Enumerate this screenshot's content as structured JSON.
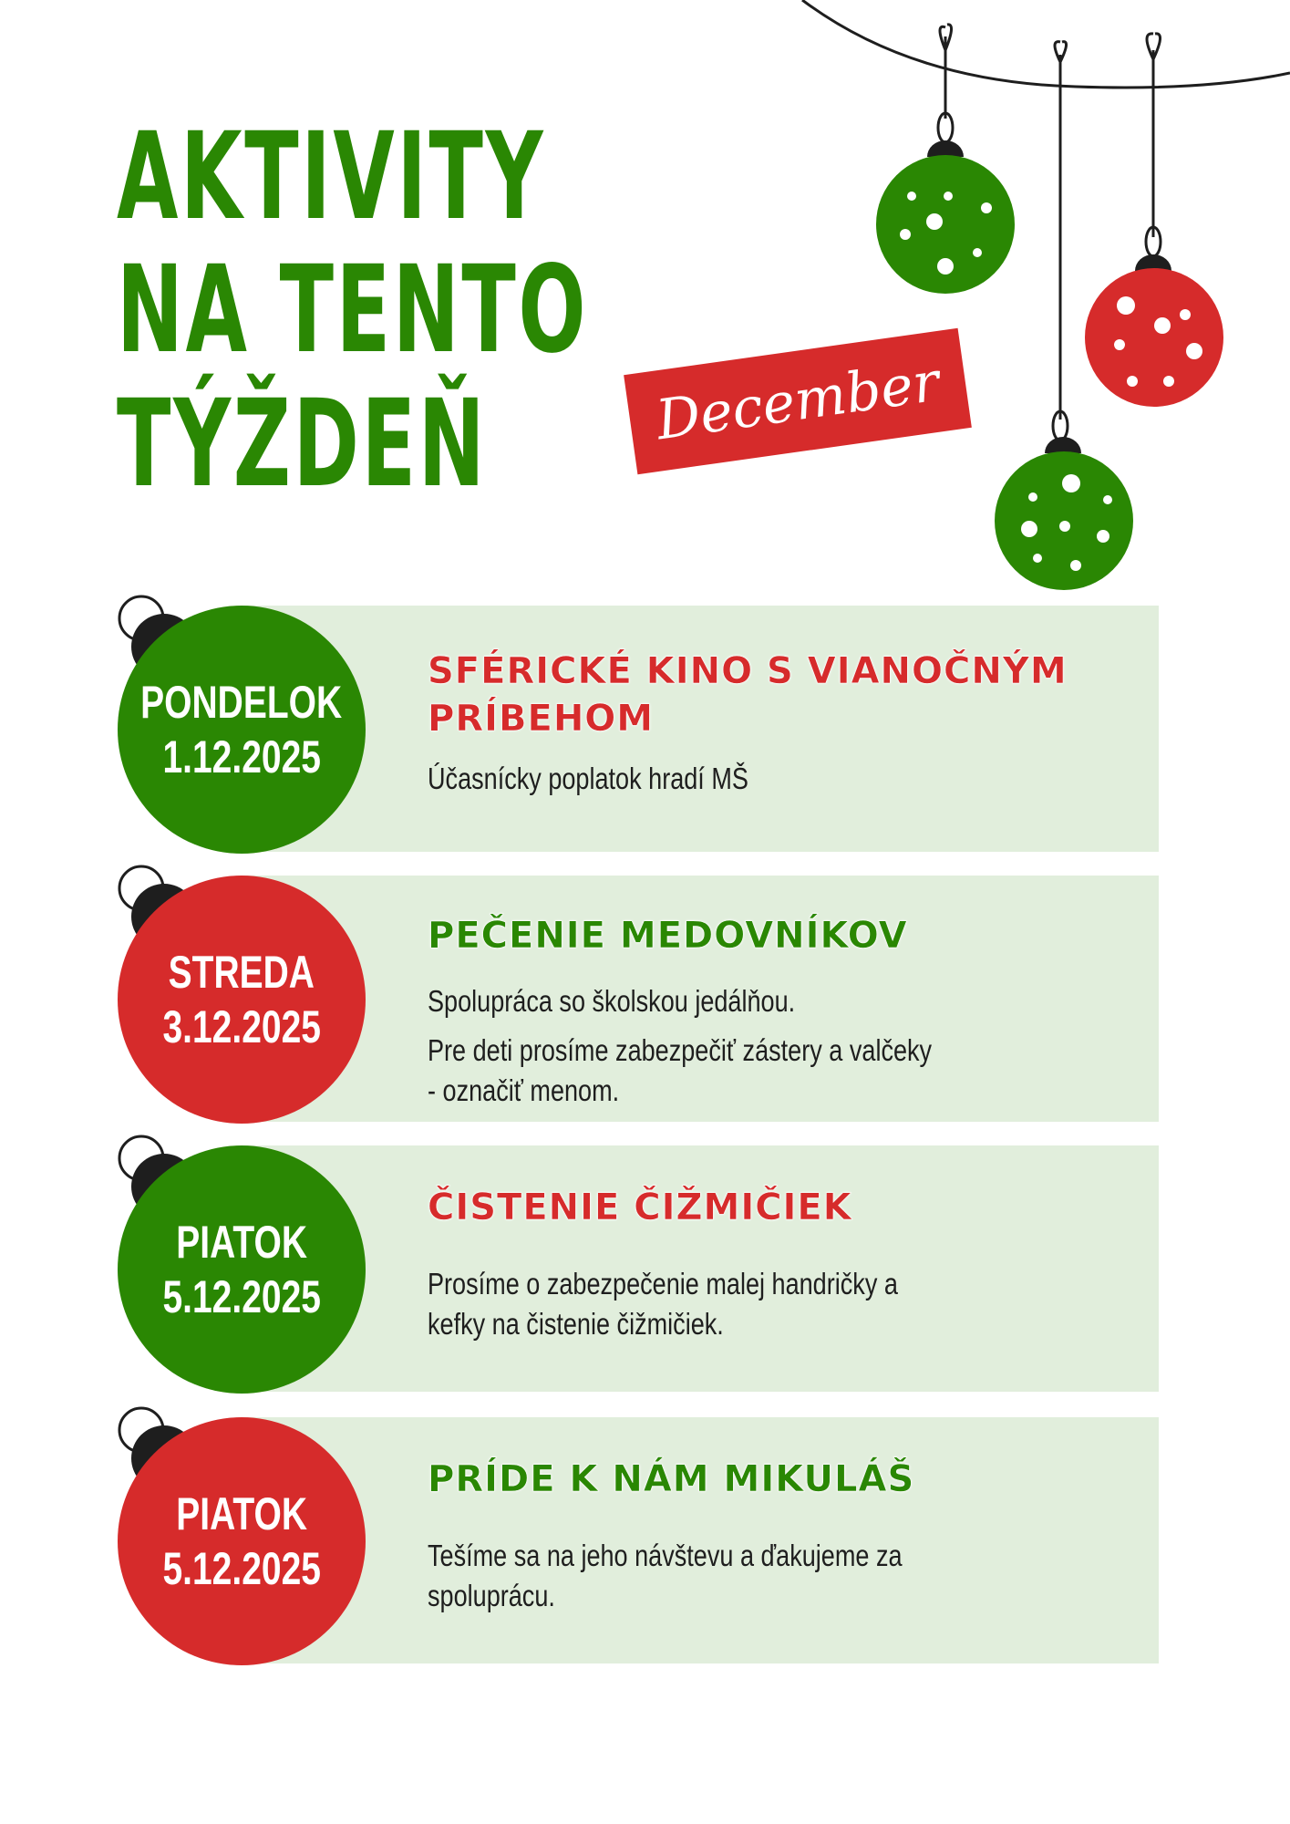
{
  "header": {
    "title_lines": [
      "AKTIVITY",
      "NA TENTO",
      "TÝŽDEŇ"
    ],
    "month": "December"
  },
  "colors": {
    "green": "#2a8703",
    "red": "#d62b2b",
    "panel": "#e1eedc"
  },
  "events": [
    {
      "day": "PONDELOK",
      "date": "1.12.2025",
      "title": "SFÉRICKÉ KINO S VIANOČNÝM PRÍBEHOM",
      "description": [
        "Účasnícky poplatok hradí MŠ"
      ]
    },
    {
      "day": "STREDA",
      "date": "3.12.2025",
      "title": "PEČENIE MEDOVNÍKOV",
      "description": [
        "Spolupráca so školskou jedálňou.",
        "Pre deti prosíme zabezpečiť zástery a valčeky - označiť menom."
      ]
    },
    {
      "day": "PIATOK",
      "date": "5.12.2025",
      "title": "ČISTENIE ČIŽMIČIEK",
      "description": [
        "Prosíme o zabezpečenie malej handričky a kefky na čistenie čižmičiek."
      ]
    },
    {
      "day": "PIATOK",
      "date": "5.12.2025",
      "title": "PRÍDE K NÁM MIKULÁŠ",
      "description": [
        "Tešíme sa na jeho návštevu a ďakujeme za spoluprácu."
      ]
    }
  ]
}
